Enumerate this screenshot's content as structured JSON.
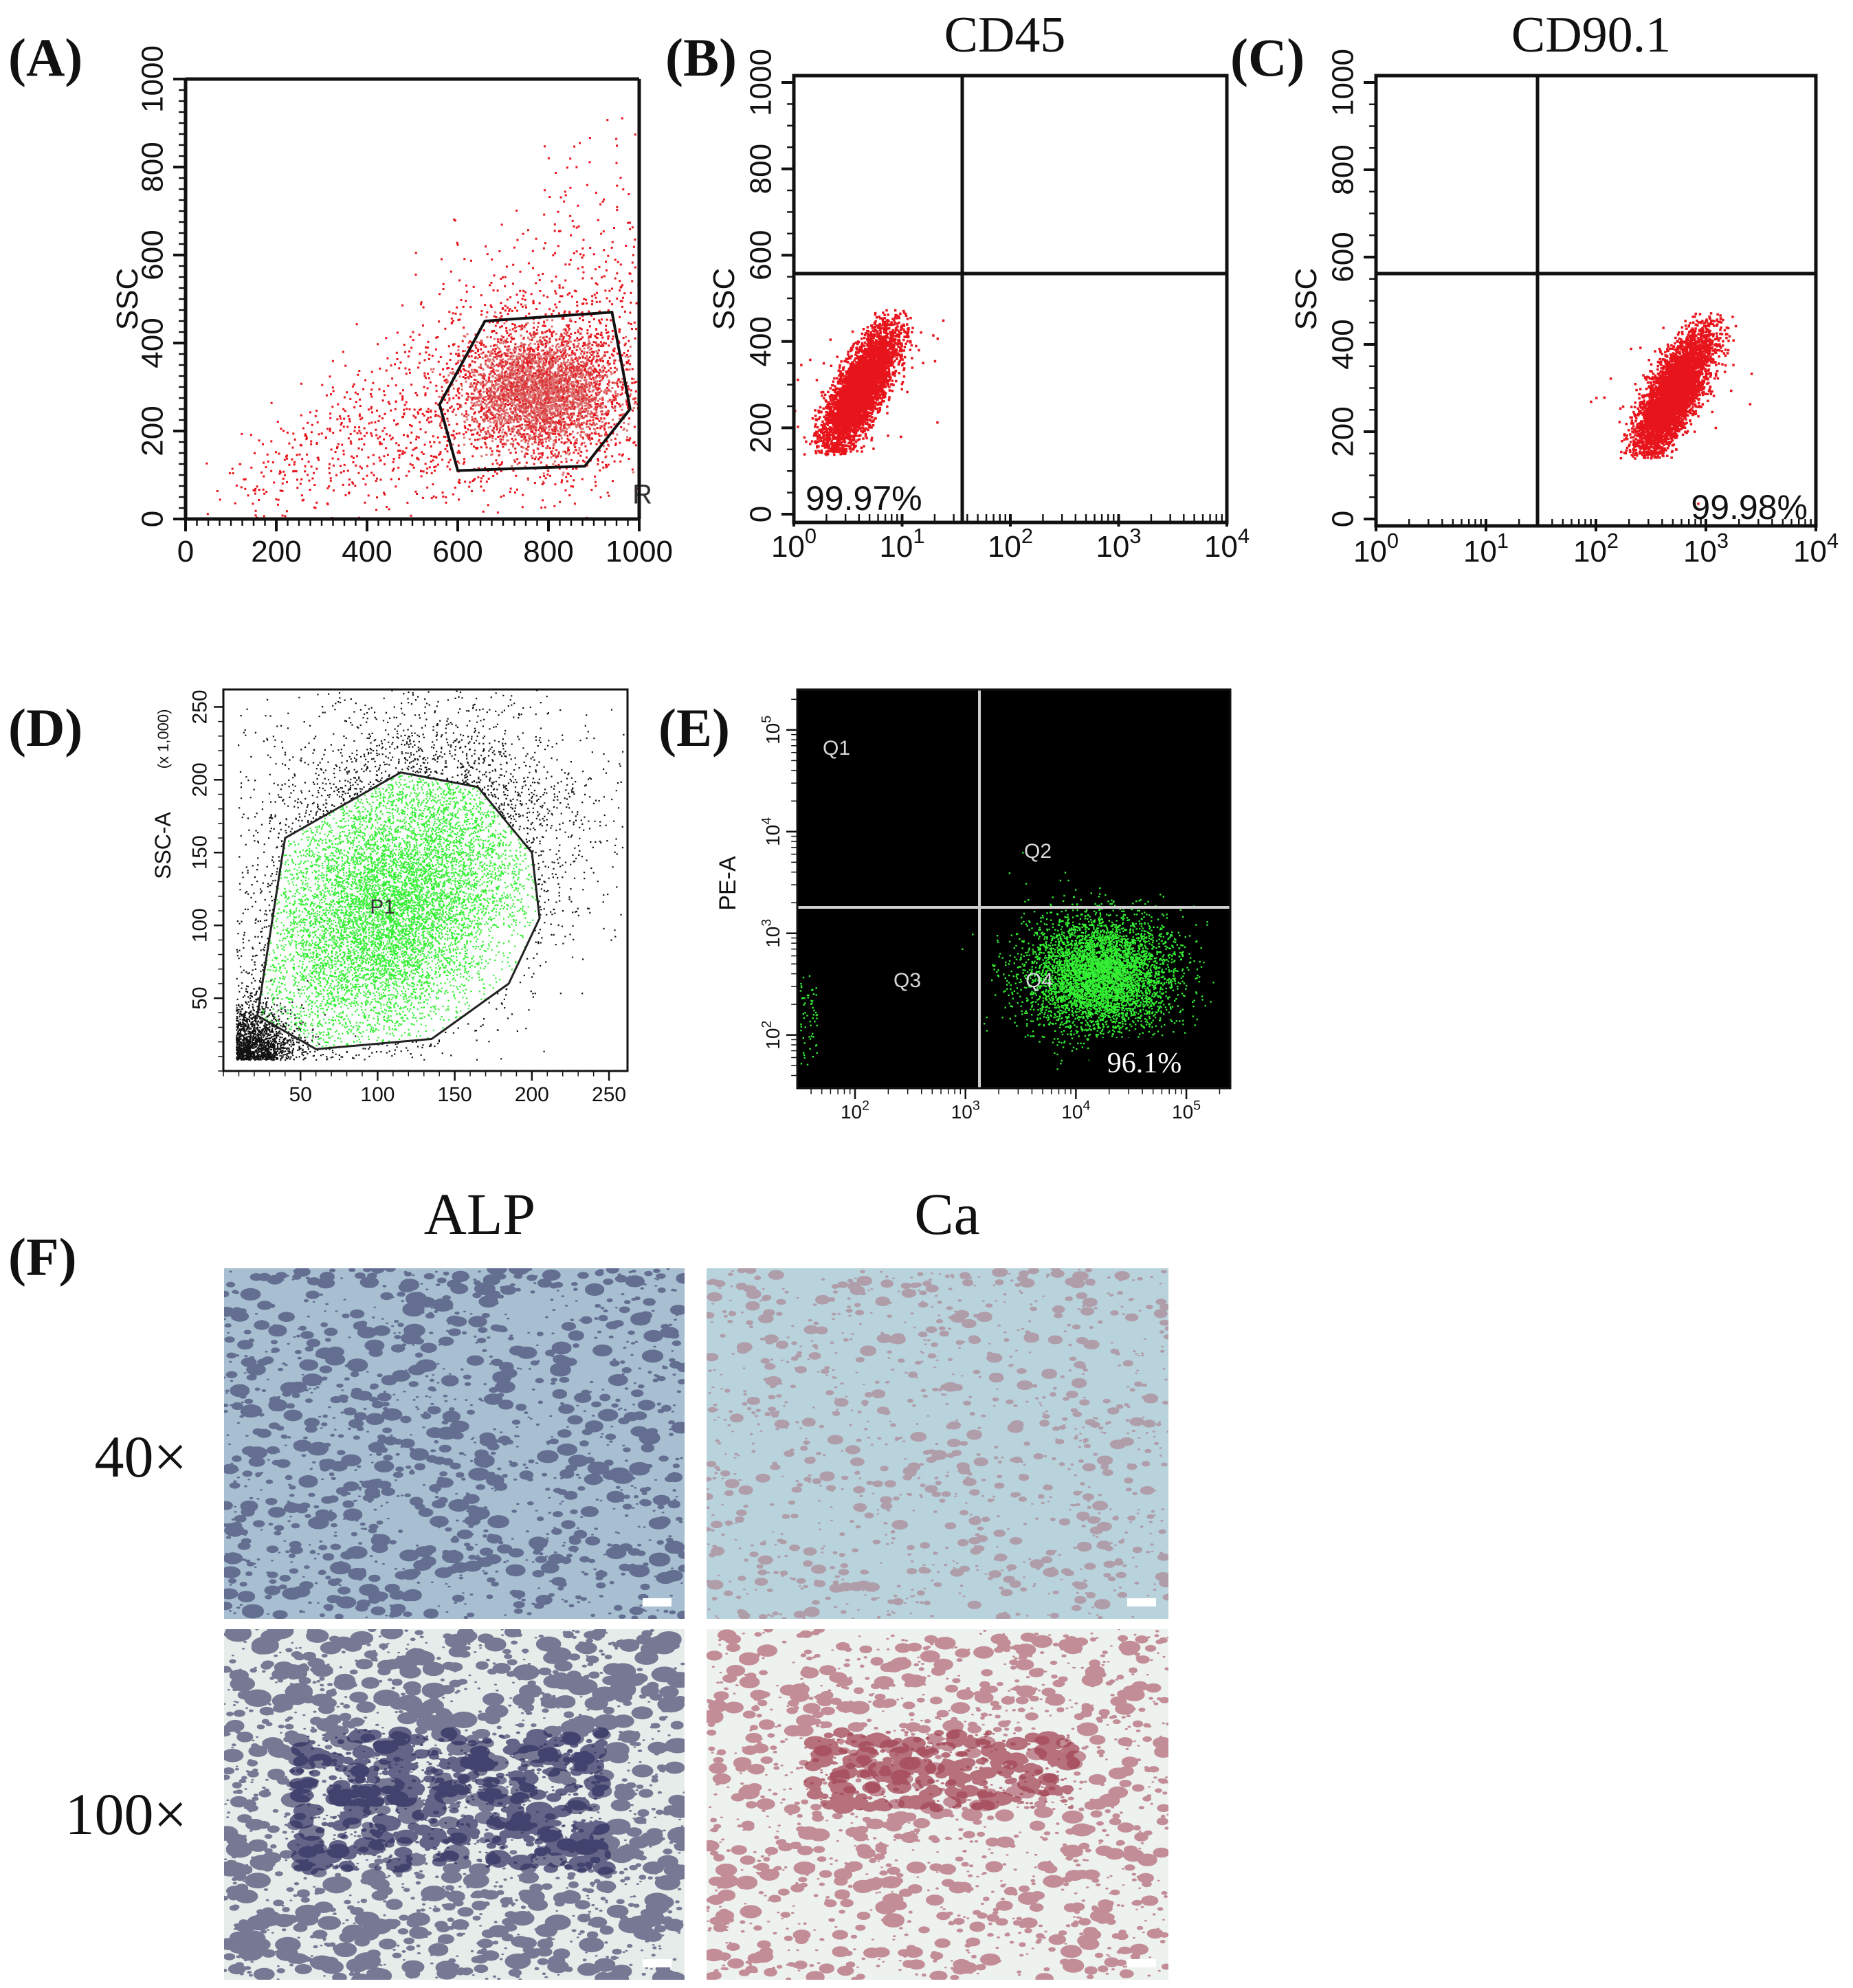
{
  "figure": {
    "panel_letters": [
      "(A)",
      "(B)",
      "(C)",
      "(D)",
      "(E)",
      "(F)"
    ]
  },
  "colors": {
    "dots_red": "#e8141c",
    "dots_green": "#33ee33",
    "dots_black": "#111111",
    "gate": "#111111",
    "alp_stain": "#2b2b5c",
    "ca_stain": "#9e3a4c"
  },
  "chart_data": [
    {
      "id": "A",
      "type": "scatter",
      "title": "",
      "xlabel": "",
      "ylabel": "SSC",
      "xlim": [
        0,
        1000
      ],
      "ylim": [
        0,
        1000
      ],
      "x_ticks": [
        "0",
        "200",
        "400",
        "600",
        "800",
        "1000"
      ],
      "y_ticks": [
        "0",
        "200",
        "400",
        "600",
        "800",
        "1000"
      ],
      "series": [
        {
          "color": "#e8141c",
          "center": [
            780,
            290
          ],
          "spread": "broad population rising to upper right"
        }
      ],
      "gate": {
        "label": "R",
        "vertices": [
          [
            560,
            260
          ],
          [
            660,
            450
          ],
          [
            940,
            470
          ],
          [
            980,
            250
          ],
          [
            880,
            120
          ],
          [
            600,
            110
          ]
        ]
      },
      "grid": false
    },
    {
      "id": "B",
      "type": "scatter",
      "title": "CD45",
      "xlabel": "",
      "ylabel": "SSC",
      "xscale": "log",
      "xlim": [
        1,
        10000
      ],
      "ylim": [
        0,
        1000
      ],
      "x_ticks": [
        "10^0",
        "10^1",
        "10^2",
        "10^3",
        "10^4"
      ],
      "y_ticks": [
        "0",
        "200",
        "400",
        "600",
        "800",
        "1000"
      ],
      "quadrant_divider": {
        "x": 30,
        "y": 570
      },
      "series": [
        {
          "color": "#e8141c",
          "center": [
            4,
            290
          ]
        }
      ],
      "annotations": [
        "99.97%"
      ],
      "grid": false
    },
    {
      "id": "C",
      "type": "scatter",
      "title": "CD90.1",
      "xlabel": "",
      "ylabel": "SSC",
      "xscale": "log",
      "xlim": [
        1,
        10000
      ],
      "ylim": [
        0,
        1000
      ],
      "x_ticks": [
        "10^0",
        "10^1",
        "10^2",
        "10^3",
        "10^4"
      ],
      "y_ticks": [
        "0",
        "200",
        "400",
        "600",
        "800",
        "1000"
      ],
      "quadrant_divider": {
        "x": 30,
        "y": 570
      },
      "series": [
        {
          "color": "#e8141c",
          "center": [
            500,
            290
          ]
        }
      ],
      "annotations": [
        "99.98%"
      ],
      "grid": false
    },
    {
      "id": "D",
      "type": "scatter",
      "title": "",
      "xlabel": "",
      "ylabel": "SSC-A",
      "ylabel_unit": "(x 1,000)",
      "xlim": [
        0,
        262
      ],
      "ylim": [
        0,
        262
      ],
      "x_ticks": [
        "50",
        "100",
        "150",
        "200",
        "250"
      ],
      "y_ticks": [
        "50",
        "100",
        "150",
        "200",
        "250"
      ],
      "series": [
        {
          "name": "P1",
          "color": "#33ee33"
        },
        {
          "color": "#111111"
        }
      ],
      "gate": {
        "label": "P1",
        "vertices": [
          [
            22,
            38
          ],
          [
            40,
            160
          ],
          [
            115,
            205
          ],
          [
            165,
            195
          ],
          [
            200,
            150
          ],
          [
            205,
            105
          ],
          [
            185,
            60
          ],
          [
            135,
            22
          ],
          [
            60,
            15
          ]
        ]
      },
      "grid": false
    },
    {
      "id": "E",
      "type": "scatter",
      "title": "",
      "xlabel": "",
      "ylabel": "PE-A",
      "xscale": "log",
      "yscale": "log",
      "xlim": [
        30,
        250000
      ],
      "ylim": [
        30,
        250000
      ],
      "x_ticks": [
        "10^2",
        "10^3",
        "10^4",
        "10^5"
      ],
      "y_ticks": [
        "10^2",
        "10^3",
        "10^4",
        "10^5"
      ],
      "quadrant_divider": {
        "x": 1300,
        "y": 1500
      },
      "quadrant_labels": [
        "Q1",
        "Q2",
        "Q3",
        "Q4"
      ],
      "series": [
        {
          "color": "#33ee33",
          "center": [
            20000,
            400
          ]
        }
      ],
      "annotations": [
        "96.1%"
      ],
      "background": "#000000",
      "grid": false
    }
  ],
  "panel_F": {
    "column_titles": [
      "ALP",
      "Ca"
    ],
    "row_labels": [
      "40×",
      "100×"
    ]
  }
}
